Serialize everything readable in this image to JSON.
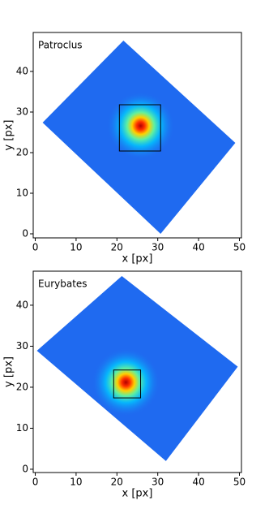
{
  "chart_data": [
    {
      "type": "image",
      "title": "Patroclus",
      "xlabel": "x [px]",
      "ylabel": "y [px]",
      "xlim": [
        -0.5,
        50.5
      ],
      "ylim": [
        -1,
        49.6
      ],
      "xticks": [
        0,
        10,
        20,
        30,
        40,
        50
      ],
      "yticks": [
        0,
        10,
        20,
        30,
        40
      ],
      "footprint": {
        "x": [
          21.6,
          49,
          30.7,
          1.8
        ],
        "y": [
          47.6,
          22.4,
          0,
          27.4
        ]
      },
      "source": {
        "x": 25.8,
        "y": 26.6
      },
      "box": {
        "x": [
          20.6,
          30.7
        ],
        "y": [
          20.4,
          31.8
        ]
      },
      "footprint_color": "#1f6af0",
      "box_color": "#000000"
    },
    {
      "type": "image",
      "title": "Eurybates",
      "xlabel": "x [px]",
      "ylabel": "y [px]",
      "xlim": [
        -0.5,
        50.5
      ],
      "ylim": [
        -0.8,
        48.3
      ],
      "xticks": [
        0,
        10,
        20,
        30,
        40,
        50
      ],
      "yticks": [
        0,
        10,
        20,
        30,
        40
      ],
      "footprint": {
        "x": [
          21.2,
          49.6,
          32,
          0.4
        ],
        "y": [
          47.1,
          25,
          2,
          28.9
        ]
      },
      "source": {
        "x": 22.2,
        "y": 21.2
      },
      "box": {
        "x": [
          19.2,
          25.8
        ],
        "y": [
          17.4,
          24.2
        ]
      },
      "footprint_color": "#1f6af0",
      "box_color": "#000000"
    }
  ]
}
